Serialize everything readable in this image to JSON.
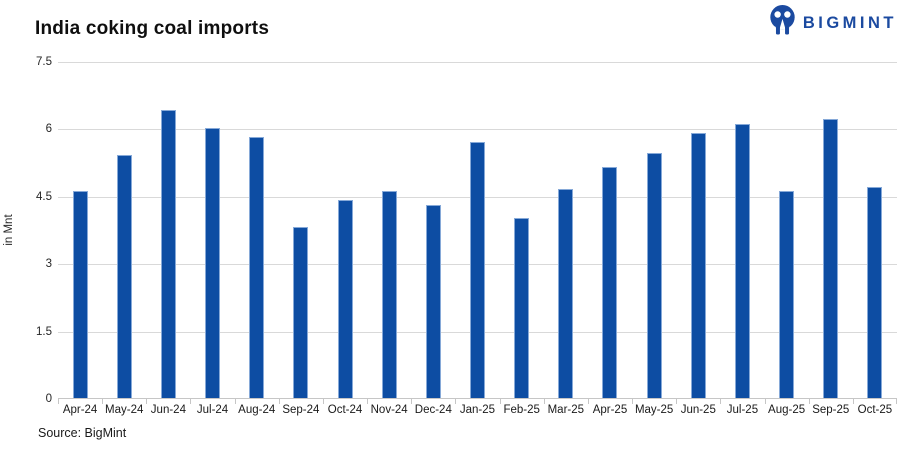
{
  "header": {
    "title": "India coking coal imports"
  },
  "logo": {
    "text": "BIGMINT",
    "color": "#1b4aa0",
    "icon": "bigmint-m-icon"
  },
  "chart_data": {
    "type": "bar",
    "title": "India coking coal imports",
    "categories": [
      "Apr-24",
      "May-24",
      "Jun-24",
      "Jul-24",
      "Aug-24",
      "Sep-24",
      "Oct-24",
      "Nov-24",
      "Dec-24",
      "Jan-25",
      "Feb-25",
      "Mar-25",
      "Apr-25",
      "May-25",
      "Jun-25",
      "Jul-25",
      "Aug-25",
      "Sep-25",
      "Oct-25"
    ],
    "values": [
      4.6,
      5.4,
      6.4,
      6.0,
      5.8,
      3.8,
      4.4,
      4.6,
      4.3,
      5.7,
      4.0,
      4.65,
      5.15,
      5.45,
      5.9,
      6.1,
      4.6,
      6.2,
      4.7
    ],
    "xlabel": "",
    "ylabel": "in Mnt",
    "ylim": [
      0,
      7.5
    ],
    "yticks": [
      0,
      1.5,
      3,
      4.5,
      6,
      7.5
    ],
    "grid": true,
    "legend": false,
    "bar_color": "#0d4da3",
    "gridline_color": "#d9d9d9"
  },
  "footer": {
    "source": "Source: BigMint"
  }
}
